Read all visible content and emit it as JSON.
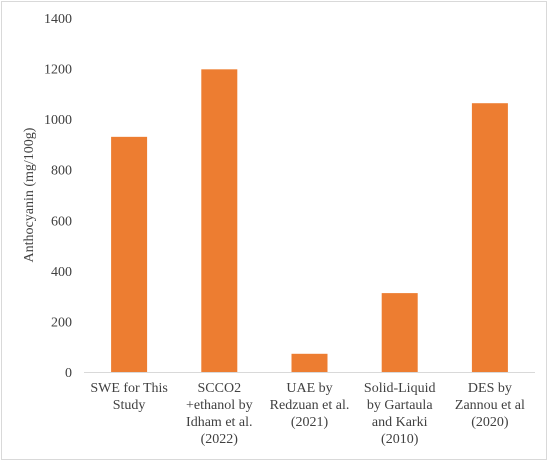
{
  "chart_data": {
    "type": "bar",
    "ylabel": "Anthocyanin (mg/100g)",
    "xlabel": "",
    "ylim": [
      0,
      1400
    ],
    "yticks": [
      0,
      200,
      400,
      600,
      800,
      1000,
      1200,
      1400
    ],
    "grid": false,
    "bar_color": "#ed7d31",
    "categories": [
      [
        "SWE for This",
        "Study"
      ],
      [
        "SCCO2",
        "+ethanol by",
        "Idham et al.",
        "(2022)"
      ],
      [
        "UAE by",
        "Redzuan et al.",
        "(2021)"
      ],
      [
        "Solid-Liquid",
        "by Gartaula",
        "and Karki",
        "(2010)"
      ],
      [
        "DES by",
        "Zannou et al",
        "(2020)"
      ]
    ],
    "values": [
      930,
      1197,
      72,
      312,
      1063
    ]
  }
}
